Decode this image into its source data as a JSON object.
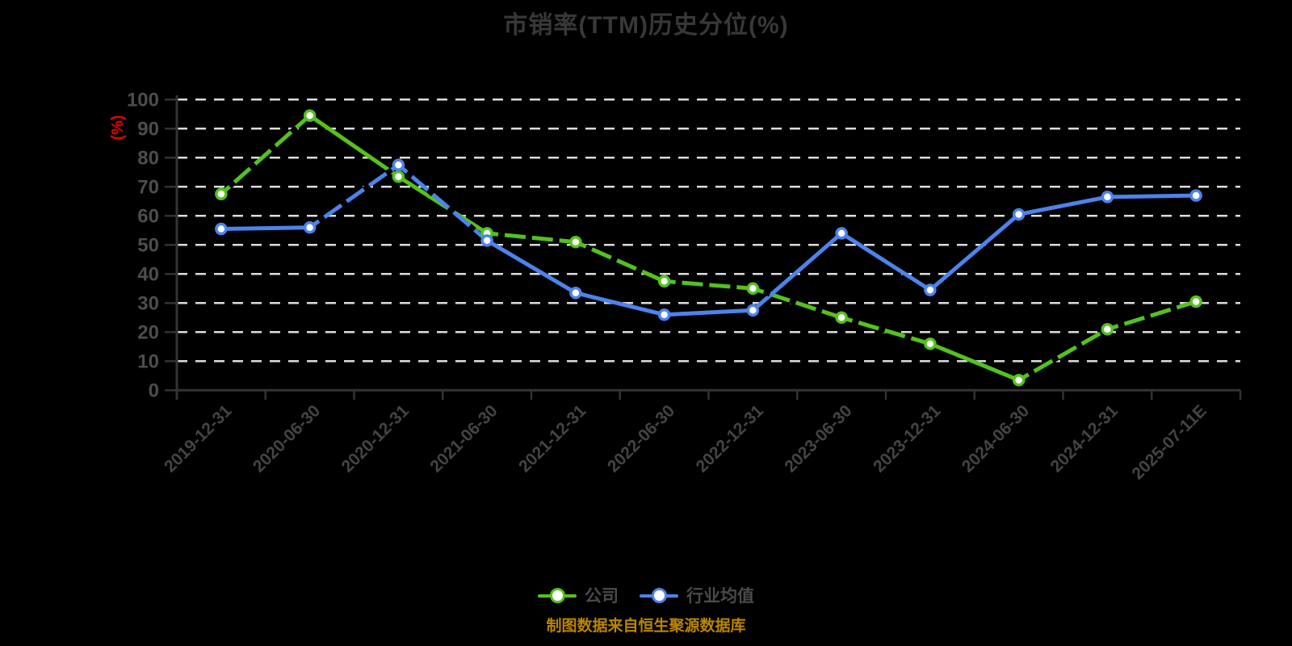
{
  "title": {
    "text": "市销率(TTM)历史分位(%)"
  },
  "caption": {
    "text": "制图数据来自恒生聚源数据库"
  },
  "colors": {
    "background": "#000000",
    "company_green": "#53C21D",
    "industry_blue": "#4C83EC",
    "grid": "#DCDCDC",
    "axis": "#333333",
    "y_tick_label": "#4D4D4D",
    "x_tick_label": "#444444",
    "title_text": "#383838",
    "ylabel_red": "#E60000",
    "caption_orange": "#BA8600",
    "marker_fill": "#FFFFFF"
  },
  "chart_data": {
    "type": "line",
    "title": "市销率(TTM)历史分位(%)",
    "xlabel": "",
    "ylabel": "(%)",
    "ylim": [
      0,
      100
    ],
    "ytick_step": 10,
    "grid": "horizontal white dashed lines on black background",
    "legend_position": "bottom",
    "x_label_rotation_deg": 45,
    "categories": [
      "2019-12-31",
      "2020-06-30",
      "2020-12-31",
      "2021-06-30",
      "2021-12-31",
      "2022-06-30",
      "2022-12-31",
      "2023-06-30",
      "2023-12-31",
      "2024-06-30",
      "2024-12-31",
      "2025-07-11E"
    ],
    "series": [
      {
        "name": "公司",
        "color": "#53C21D",
        "marker": "circle-white-fill",
        "values": [
          67.5,
          94.5,
          73.5,
          54,
          51,
          37.5,
          35,
          25,
          16,
          3.5,
          21,
          30.5
        ],
        "dashed_overlay_segments": [
          0,
          3,
          4,
          5,
          6,
          7,
          9,
          10
        ]
      },
      {
        "name": "行业均值",
        "color": "#4C83EC",
        "marker": "circle-white-fill",
        "values": [
          55.5,
          56,
          77.5,
          51.5,
          33.5,
          26,
          27.5,
          54,
          34.5,
          60.5,
          66.5,
          67
        ],
        "dashed_overlay_segments": [
          1,
          2
        ]
      }
    ]
  }
}
